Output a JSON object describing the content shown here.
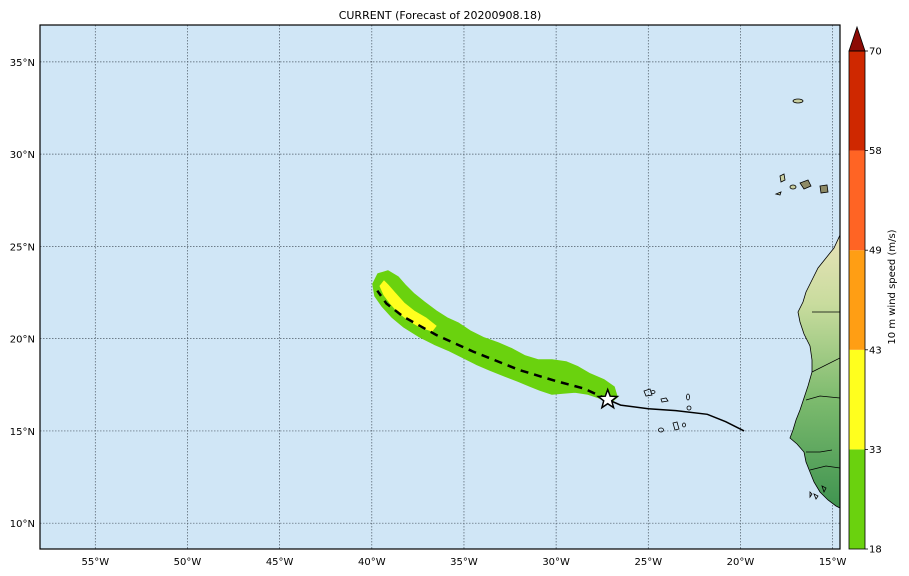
{
  "title": "CURRENT (Forecast of 20200908.18)",
  "map": {
    "lon_range": [
      -58,
      -14.6
    ],
    "lat_range": [
      8.6,
      37
    ],
    "gridlines": true,
    "ocean_color": "#d0e6f6",
    "lon_ticks": [
      {
        "value": -55,
        "label": "55°W"
      },
      {
        "value": -50,
        "label": "50°W"
      },
      {
        "value": -45,
        "label": "45°W"
      },
      {
        "value": -40,
        "label": "40°W"
      },
      {
        "value": -35,
        "label": "35°W"
      },
      {
        "value": -30,
        "label": "30°W"
      },
      {
        "value": -25,
        "label": "25°W"
      },
      {
        "value": -20,
        "label": "20°W"
      },
      {
        "value": -15,
        "label": "15°W"
      }
    ],
    "lat_ticks": [
      {
        "value": 10,
        "label": "10°N"
      },
      {
        "value": 15,
        "label": "15°N"
      },
      {
        "value": 20,
        "label": "20°N"
      },
      {
        "value": 25,
        "label": "25°N"
      },
      {
        "value": 30,
        "label": "30°N"
      },
      {
        "value": 35,
        "label": "35°N"
      }
    ],
    "observed_track": [
      [
        -19.8,
        15.0
      ],
      [
        -20.8,
        15.5
      ],
      [
        -21.8,
        15.9
      ],
      [
        -23.5,
        16.1
      ],
      [
        -25.0,
        16.2
      ],
      [
        -26.5,
        16.4
      ],
      [
        -27.2,
        16.7
      ]
    ],
    "forecast_track": [
      [
        -27.2,
        16.7
      ],
      [
        -28.5,
        17.3
      ],
      [
        -30.0,
        17.7
      ],
      [
        -32.0,
        18.3
      ],
      [
        -34.5,
        19.3
      ],
      [
        -36.5,
        20.2
      ],
      [
        -38.3,
        21.2
      ],
      [
        -39.2,
        21.9
      ],
      [
        -39.7,
        22.6
      ]
    ],
    "current_position": {
      "lon": -27.2,
      "lat": 16.7,
      "symbol": "star-icon"
    }
  },
  "colorbar": {
    "label": "10 m wind speed (m/s)",
    "levels": [
      18,
      33,
      43,
      49,
      58,
      70
    ],
    "colors": [
      "#6ad20e",
      "#ffff1e",
      "#ff9e14",
      "#ff6424",
      "#cf2800"
    ],
    "extend_color": "#8c0a05"
  },
  "chart_data": {
    "type": "map",
    "title": "CURRENT (Forecast of 20200908.18)",
    "colorbar_label": "10 m wind speed (m/s)",
    "colorbar_levels": [
      18,
      33,
      43,
      49,
      58,
      70
    ],
    "wind_swath_levels_present": [
      "18-33",
      "33-43"
    ],
    "track": "observed track to current position near 27°W 16.7°N, forecast track heading northwest toward about 39.7°W 22.6°N"
  }
}
